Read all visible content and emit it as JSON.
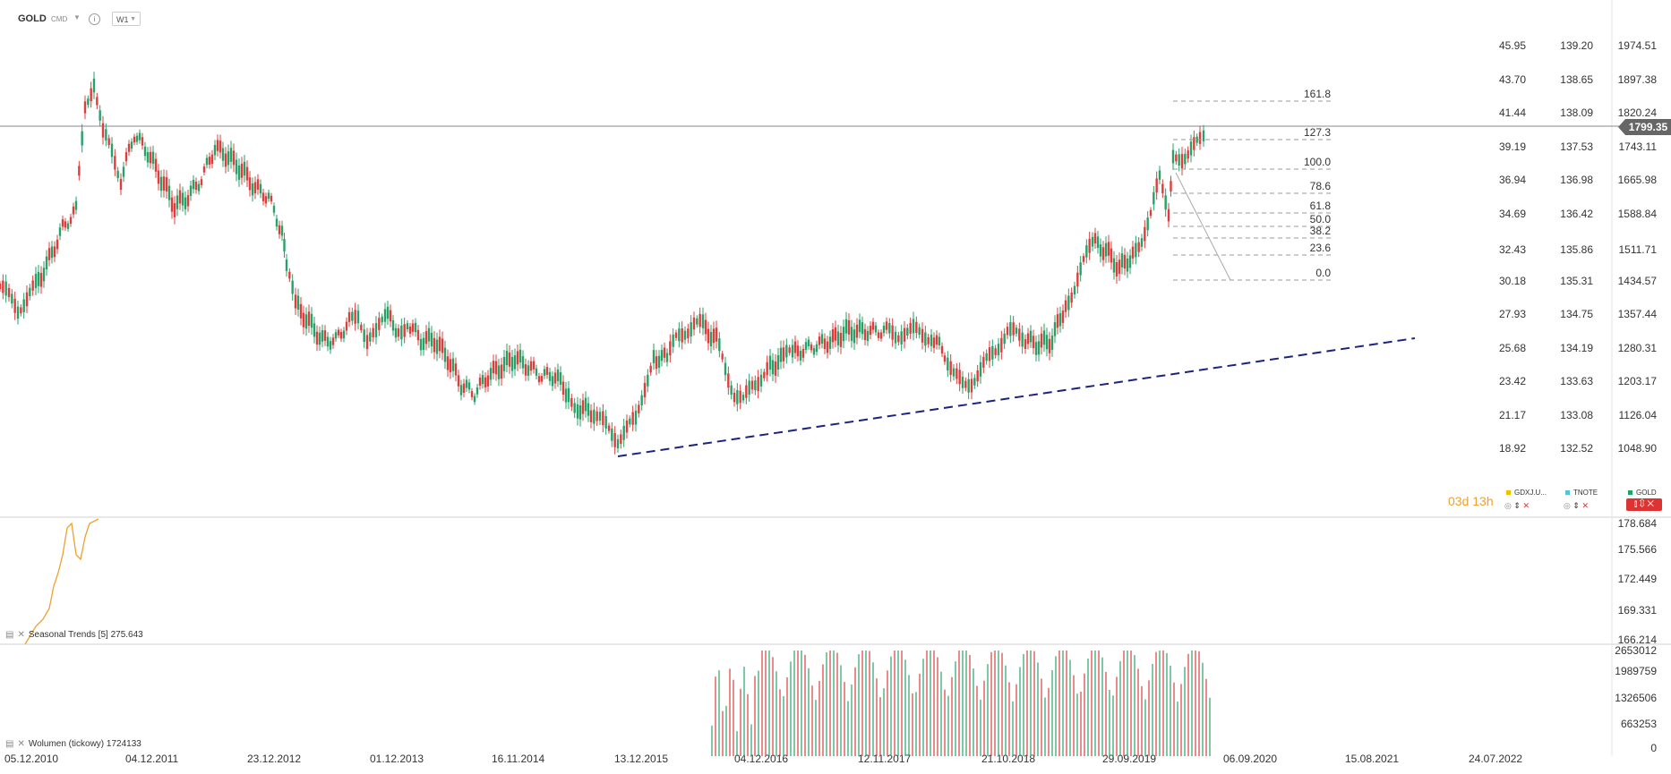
{
  "header": {
    "symbol": "GOLD",
    "market": "CMD",
    "info_icon": "info-icon",
    "timeframe": "W1"
  },
  "axes": {
    "col1": [
      "45.95",
      "43.70",
      "41.44",
      "39.19",
      "36.94",
      "34.69",
      "32.43",
      "30.18",
      "27.93",
      "25.68",
      "23.42",
      "21.17",
      "18.92"
    ],
    "col2": [
      "139.20",
      "138.65",
      "138.09",
      "137.53",
      "136.98",
      "136.42",
      "135.86",
      "135.31",
      "134.75",
      "134.19",
      "133.63",
      "133.08",
      "132.52"
    ],
    "col3": [
      "1974.51",
      "1897.38",
      "1820.24",
      "1743.11",
      "1665.98",
      "1588.84",
      "1511.71",
      "1434.57",
      "1357.44",
      "1280.31",
      "1203.17",
      "1126.04",
      "1048.90"
    ],
    "seasonal": [
      "178.684",
      "175.566",
      "172.449",
      "169.331",
      "166.214"
    ],
    "volume": [
      "2653012",
      "1989759",
      "1326506",
      "663253",
      "0"
    ],
    "dates": [
      "05.12.2010",
      "04.12.2011",
      "23.12.2012",
      "01.12.2013",
      "16.11.2014",
      "13.12.2015",
      "04.12.2016",
      "12.11.2017",
      "21.10.2018",
      "29.09.2019",
      "06.09.2020",
      "15.08.2021",
      "24.07.2022"
    ]
  },
  "current_price": "1799.35",
  "fibonacci": [
    "161.8",
    "127.3",
    "100.0",
    "78.6",
    "61.8",
    "50.0",
    "38.2",
    "23.6",
    "0.0"
  ],
  "legend": [
    {
      "name": "GDXJ.U...",
      "color": "#f0c000"
    },
    {
      "name": "TNOTE",
      "color": "#5bc0de"
    },
    {
      "name": "GOLD",
      "color": "#26a269"
    }
  ],
  "timer": {
    "d": "03",
    "h": "13",
    "d_unit": "d",
    "h_unit": "h"
  },
  "indicators": {
    "seasonal_label": "Seasonal  Trends  [5]  275.643",
    "volume_label": "Wolumen  (tickowy)   1724133"
  },
  "colors": {
    "up": "#26a269",
    "down": "#e03c3c",
    "trend": "#1a237e",
    "seasonal": "#f0a030"
  }
}
